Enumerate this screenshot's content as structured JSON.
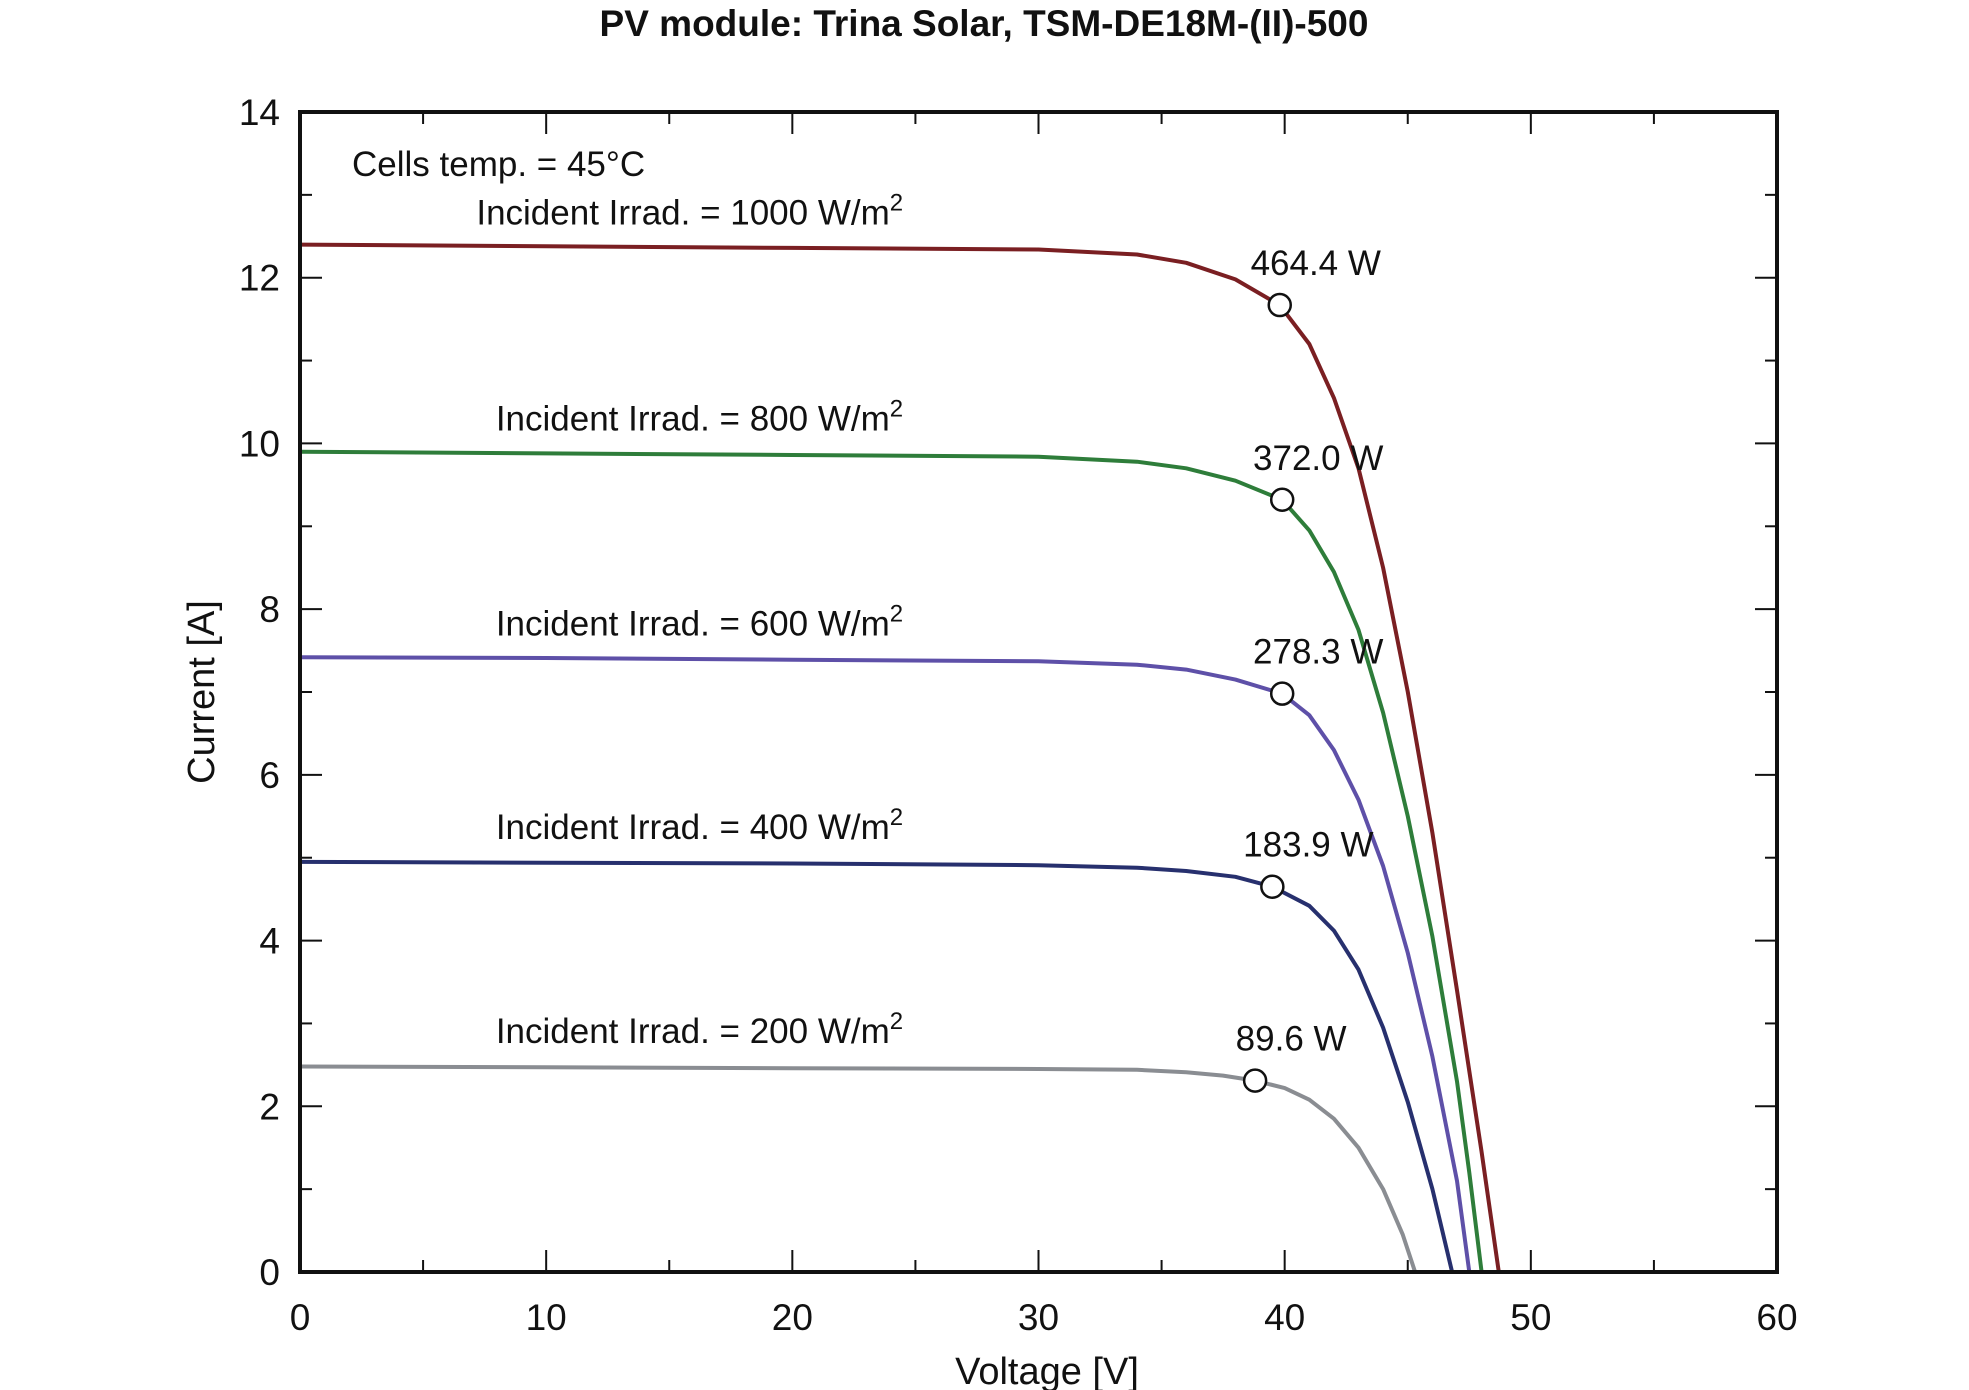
{
  "chart_data": {
    "type": "line",
    "title": "PV module: Trina Solar, TSM-DE18M-(II)-500",
    "xlabel": "Voltage [V]",
    "ylabel": "Current [A]",
    "xlim": [
      0,
      60
    ],
    "ylim": [
      0,
      14
    ],
    "xticks": [
      0,
      10,
      20,
      30,
      40,
      50,
      60
    ],
    "yticks": [
      0,
      2,
      4,
      6,
      8,
      10,
      12,
      14
    ],
    "grid": false,
    "annotation": "Cells temp. = 45°C",
    "series": [
      {
        "name": "Incident Irrad. = 1000 W/m2",
        "label_text": "Incident Irrad. = 1000 W/m",
        "label_sup": "2",
        "color": "#7a1f22",
        "isc": 12.4,
        "voc": 48.7,
        "v_knee": 31.0,
        "i_knee": 12.33,
        "mpp": {
          "v": 39.8,
          "i": 11.67,
          "label": "464.4 W"
        },
        "points": [
          [
            0,
            12.4
          ],
          [
            10,
            12.38
          ],
          [
            20,
            12.36
          ],
          [
            30,
            12.34
          ],
          [
            34,
            12.28
          ],
          [
            36,
            12.18
          ],
          [
            38,
            11.98
          ],
          [
            39.8,
            11.67
          ],
          [
            41,
            11.2
          ],
          [
            42,
            10.55
          ],
          [
            43,
            9.7
          ],
          [
            44,
            8.5
          ],
          [
            45,
            7.0
          ],
          [
            46,
            5.3
          ],
          [
            47,
            3.4
          ],
          [
            48,
            1.45
          ],
          [
            48.7,
            0
          ]
        ]
      },
      {
        "name": "Incident Irrad. = 800 W/m2",
        "label_text": "Incident Irrad. = 800 W/m",
        "label_sup": "2",
        "color": "#2e7d3a",
        "isc": 9.9,
        "voc": 48.0,
        "v_knee": 32.0,
        "i_knee": 9.84,
        "mpp": {
          "v": 39.9,
          "i": 9.32,
          "label": "372.0 W"
        },
        "points": [
          [
            0,
            9.9
          ],
          [
            10,
            9.88
          ],
          [
            20,
            9.86
          ],
          [
            30,
            9.84
          ],
          [
            34,
            9.78
          ],
          [
            36,
            9.7
          ],
          [
            38,
            9.55
          ],
          [
            39.9,
            9.32
          ],
          [
            41,
            8.95
          ],
          [
            42,
            8.45
          ],
          [
            43,
            7.75
          ],
          [
            44,
            6.75
          ],
          [
            45,
            5.5
          ],
          [
            46,
            4.05
          ],
          [
            47,
            2.3
          ],
          [
            47.5,
            1.2
          ],
          [
            48,
            0
          ]
        ]
      },
      {
        "name": "Incident Irrad. = 600 W/m2",
        "label_text": "Incident Irrad. = 600 W/m",
        "label_sup": "2",
        "color": "#5e50a8",
        "isc": 7.42,
        "voc": 47.5,
        "v_knee": 32.0,
        "i_knee": 7.37,
        "mpp": {
          "v": 39.9,
          "i": 6.98,
          "label": "278.3 W"
        },
        "points": [
          [
            0,
            7.42
          ],
          [
            10,
            7.41
          ],
          [
            20,
            7.39
          ],
          [
            30,
            7.37
          ],
          [
            34,
            7.33
          ],
          [
            36,
            7.27
          ],
          [
            38,
            7.15
          ],
          [
            39.9,
            6.98
          ],
          [
            41,
            6.72
          ],
          [
            42,
            6.3
          ],
          [
            43,
            5.7
          ],
          [
            44,
            4.9
          ],
          [
            45,
            3.85
          ],
          [
            46,
            2.6
          ],
          [
            47,
            1.1
          ],
          [
            47.5,
            0
          ]
        ]
      },
      {
        "name": "Incident Irrad. = 400 W/m2",
        "label_text": "Incident Irrad. = 400 W/m",
        "label_sup": "2",
        "color": "#27306e",
        "isc": 4.95,
        "voc": 46.8,
        "v_knee": 32.0,
        "i_knee": 4.91,
        "mpp": {
          "v": 39.5,
          "i": 4.65,
          "label": "183.9 W"
        },
        "points": [
          [
            0,
            4.95
          ],
          [
            10,
            4.94
          ],
          [
            20,
            4.93
          ],
          [
            30,
            4.91
          ],
          [
            34,
            4.88
          ],
          [
            36,
            4.84
          ],
          [
            38,
            4.77
          ],
          [
            39.5,
            4.65
          ],
          [
            41,
            4.42
          ],
          [
            42,
            4.12
          ],
          [
            43,
            3.65
          ],
          [
            44,
            2.95
          ],
          [
            45,
            2.05
          ],
          [
            46,
            1.0
          ],
          [
            46.8,
            0
          ]
        ]
      },
      {
        "name": "Incident Irrad. = 200 W/m2",
        "label_text": "Incident Irrad. = 200 W/m",
        "label_sup": "2",
        "color": "#8a8d92",
        "isc": 2.48,
        "voc": 45.3,
        "v_knee": 32.0,
        "i_knee": 2.45,
        "mpp": {
          "v": 38.8,
          "i": 2.31,
          "label": "89.6 W"
        },
        "points": [
          [
            0,
            2.48
          ],
          [
            10,
            2.47
          ],
          [
            20,
            2.46
          ],
          [
            30,
            2.45
          ],
          [
            34,
            2.44
          ],
          [
            36,
            2.41
          ],
          [
            37.5,
            2.37
          ],
          [
            38.8,
            2.31
          ],
          [
            40,
            2.22
          ],
          [
            41,
            2.08
          ],
          [
            42,
            1.85
          ],
          [
            43,
            1.5
          ],
          [
            44,
            1.0
          ],
          [
            44.8,
            0.45
          ],
          [
            45.3,
            0
          ]
        ]
      }
    ]
  }
}
